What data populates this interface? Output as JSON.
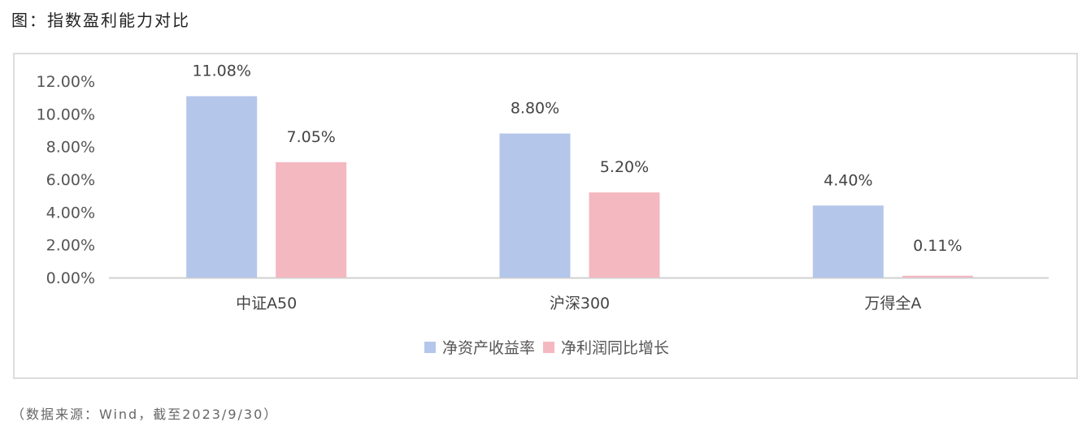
{
  "title": "图：指数盈利能力对比",
  "source": "（数据来源：Wind，截至2023/9/30）",
  "chart_data": {
    "type": "bar",
    "title": "",
    "xlabel": "",
    "ylabel": "",
    "categories": [
      "中证A50",
      "沪深300",
      "万得全A"
    ],
    "series": [
      {
        "name": "净资产收益率",
        "values": [
          11.08,
          8.8,
          4.4
        ],
        "labels": [
          "11.08%",
          "8.80%",
          "4.40%"
        ],
        "color": "#b4c6e9"
      },
      {
        "name": "净利润同比增长",
        "values": [
          7.05,
          5.2,
          0.11
        ],
        "labels": [
          "7.05%",
          "5.20%",
          "0.11%"
        ],
        "color": "#f4b8c0"
      }
    ],
    "ylim": [
      0,
      12
    ],
    "yticks": [
      "0.00%",
      "2.00%",
      "4.00%",
      "6.00%",
      "8.00%",
      "10.00%",
      "12.00%"
    ],
    "grid": false,
    "legend": "bottom"
  }
}
